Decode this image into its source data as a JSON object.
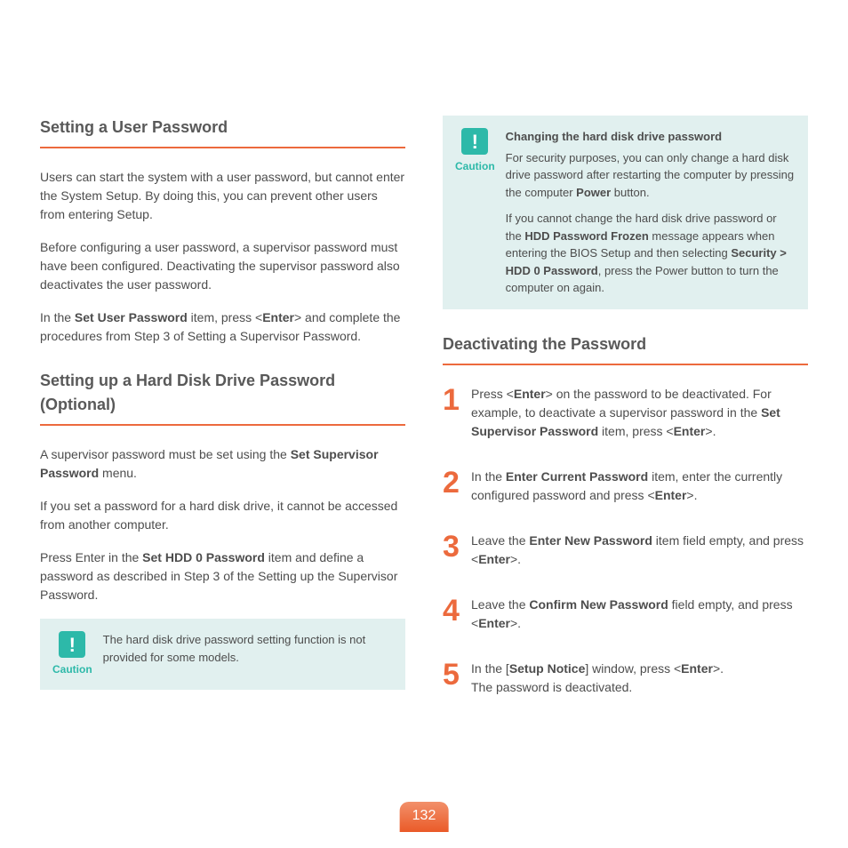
{
  "page_number": "132",
  "colors": {
    "accent_orange": "#ec6a3d",
    "caution_bg": "#e1f0ef",
    "caution_accent": "#2db9a9",
    "text": "#4d4d4d",
    "heading": "#595959"
  },
  "left": {
    "h1": "Setting a User Password",
    "p1": "Users can start the system with a user password, but cannot enter the System Setup. By doing this, you can prevent other users from entering Setup.",
    "p2": "Before configuring a user password, a supervisor password must have been configured. Deactivating the supervisor password also deactivates the user password.",
    "p3_a": "In the ",
    "p3_b": "Set User Password",
    "p3_c": " item, press <",
    "p3_d": "Enter",
    "p3_e": "> and complete the procedures from Step 3 of Setting a Supervisor Password.",
    "h2": "Setting up a Hard Disk Drive Password (Optional)",
    "p4_a": "A supervisor password must be set using the ",
    "p4_b": "Set Supervisor Password",
    "p4_c": " menu.",
    "p5": "If you set a password for a hard disk drive, it cannot be accessed from another computer.",
    "p6_a": "Press Enter in the ",
    "p6_b": "Set HDD 0 Password",
    "p6_c": " item and define a password as described in Step 3 of the Setting up the Supervisor Password.",
    "caution1": {
      "label": "Caution",
      "text": "The hard disk drive password setting function is not provided for some models."
    }
  },
  "right": {
    "caution2": {
      "label": "Caution",
      "title": "Changing the hard disk drive password",
      "p1_a": "For security purposes, you can only change a hard disk drive password after restarting the computer by pressing the computer ",
      "p1_b": "Power",
      "p1_c": " button.",
      "p2_a": "If you cannot change the hard disk drive password or the ",
      "p2_b": "HDD Password Frozen",
      "p2_c": " message appears when entering the BIOS Setup and then selecting ",
      "p2_d": "Security > HDD 0 Password",
      "p2_e": ", press the Power button to turn the computer on again."
    },
    "h3": "Deactivating the Password",
    "steps": {
      "s1": {
        "num": "1",
        "a": "Press <",
        "b": "Enter",
        "c": "> on the password to be deactivated. For example, to deactivate a supervisor password in the ",
        "d": "Set Supervisor Password",
        "e": " item, press <",
        "f": "Enter",
        "g": ">."
      },
      "s2": {
        "num": "2",
        "a": "In the ",
        "b": "Enter Current Password",
        "c": " item, enter the currently configured password and press <",
        "d": "Enter",
        "e": ">."
      },
      "s3": {
        "num": "3",
        "a": "Leave the ",
        "b": "Enter New Password",
        "c": " item field empty, and press <",
        "d": "Enter",
        "e": ">."
      },
      "s4": {
        "num": "4",
        "a": "Leave the ",
        "b": "Confirm New Password",
        "c": " field empty, and press <",
        "d": "Enter",
        "e": ">."
      },
      "s5": {
        "num": "5",
        "a": "In the [",
        "b": "Setup Notice",
        "c": "] window, press <",
        "d": "Enter",
        "e": ">.",
        "f": "The password is deactivated."
      }
    }
  }
}
